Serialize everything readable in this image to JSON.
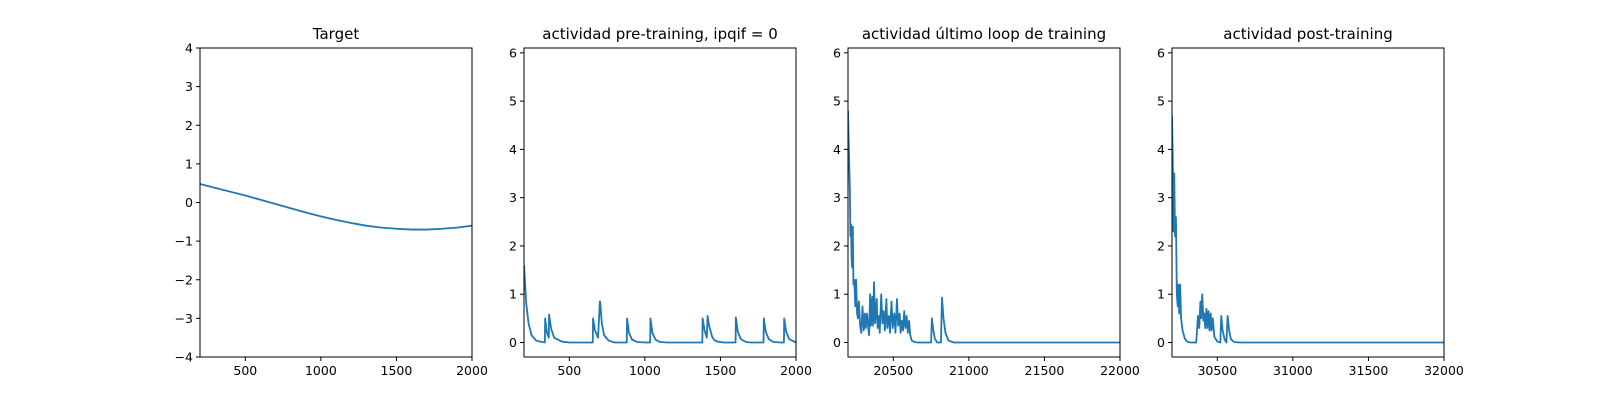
{
  "chart_data": [
    {
      "type": "line",
      "title": "Target",
      "xlabel": "",
      "ylabel": "",
      "xlim": [
        200,
        2000
      ],
      "ylim": [
        -4,
        4
      ],
      "xticks": [
        500,
        1000,
        1500,
        2000
      ],
      "xtick_labels": [
        "500",
        "1000",
        "1500",
        "2000"
      ],
      "yticks": [
        -4,
        -3,
        -2,
        -1,
        0,
        1,
        2,
        3,
        4
      ],
      "ytick_labels": [
        "−4",
        "−3",
        "−2",
        "−1",
        "0",
        "1",
        "2",
        "3",
        "4"
      ],
      "grid": false,
      "color": "#1f77b4",
      "x": [
        200,
        300,
        400,
        500,
        600,
        700,
        800,
        900,
        1000,
        1100,
        1200,
        1300,
        1400,
        1500,
        1600,
        1700,
        1800,
        1900,
        2000
      ],
      "y": [
        0.48,
        0.38,
        0.28,
        0.18,
        0.07,
        -0.04,
        -0.15,
        -0.26,
        -0.36,
        -0.45,
        -0.53,
        -0.6,
        -0.65,
        -0.68,
        -0.7,
        -0.7,
        -0.68,
        -0.65,
        -0.6
      ]
    },
    {
      "type": "line",
      "title": "actividad pre-training, ipqif = 0",
      "xlabel": "",
      "ylabel": "",
      "xlim": [
        200,
        2000
      ],
      "ylim": [
        -0.3,
        6.1
      ],
      "xticks": [
        500,
        1000,
        1500,
        2000
      ],
      "xtick_labels": [
        "500",
        "1000",
        "1500",
        "2000"
      ],
      "yticks": [
        0,
        1,
        2,
        3,
        4,
        5,
        6
      ],
      "ytick_labels": [
        "0",
        "1",
        "2",
        "3",
        "4",
        "5",
        "6"
      ],
      "grid": false,
      "color": "#1f77b4",
      "x": [
        200,
        215,
        230,
        250,
        280,
        320,
        338,
        340,
        352,
        364,
        366,
        380,
        400,
        450,
        500,
        655,
        657,
        670,
        690,
        702,
        704,
        715,
        730,
        760,
        800,
        880,
        882,
        895,
        915,
        950,
        1000,
        1035,
        1037,
        1050,
        1070,
        1100,
        1150,
        1380,
        1382,
        1395,
        1405,
        1410,
        1415,
        1425,
        1445,
        1460,
        1480,
        1520,
        1600,
        1602,
        1615,
        1635,
        1670,
        1700,
        1785,
        1787,
        1800,
        1820,
        1850,
        1900,
        1920,
        1922,
        1935,
        1955,
        2000
      ],
      "y": [
        1.6,
        0.8,
        0.4,
        0.15,
        0.04,
        0.01,
        0.0,
        0.5,
        0.2,
        0.1,
        0.58,
        0.28,
        0.1,
        0.02,
        0.0,
        0.0,
        0.5,
        0.25,
        0.1,
        0.85,
        0.85,
        0.4,
        0.15,
        0.04,
        0.0,
        0.0,
        0.5,
        0.2,
        0.06,
        0.01,
        0.0,
        0.0,
        0.5,
        0.2,
        0.06,
        0.01,
        0.0,
        0.0,
        0.5,
        0.25,
        0.15,
        0.1,
        0.55,
        0.35,
        0.12,
        0.05,
        0.02,
        0.0,
        0.0,
        0.52,
        0.22,
        0.07,
        0.01,
        0.0,
        0.0,
        0.5,
        0.22,
        0.07,
        0.01,
        0.0,
        0.0,
        0.5,
        0.22,
        0.07,
        0.0
      ]
    },
    {
      "type": "line",
      "title": "actividad último loop de training",
      "xlabel": "",
      "ylabel": "",
      "xlim": [
        20200,
        22000
      ],
      "ylim": [
        -0.3,
        6.1
      ],
      "xticks": [
        20500,
        21000,
        21500,
        22000
      ],
      "xtick_labels": [
        "20500",
        "21000",
        "21500",
        "22000"
      ],
      "yticks": [
        0,
        1,
        2,
        3,
        4,
        5,
        6
      ],
      "ytick_labels": [
        "0",
        "1",
        "2",
        "3",
        "4",
        "5",
        "6"
      ],
      "grid": false,
      "color": "#1f77b4",
      "x": [
        20200,
        20206,
        20212,
        20216,
        20220,
        20224,
        20228,
        20232,
        20236,
        20242,
        20248,
        20254,
        20260,
        20266,
        20272,
        20280,
        20288,
        20296,
        20304,
        20312,
        20318,
        20326,
        20334,
        20340,
        20346,
        20352,
        20360,
        20366,
        20372,
        20380,
        20390,
        20396,
        20404,
        20410,
        20420,
        20428,
        20436,
        20444,
        20454,
        20460,
        20470,
        20478,
        20488,
        20496,
        20506,
        20514,
        20524,
        20532,
        20542,
        20548,
        20556,
        20564,
        20572,
        20580,
        20588,
        20596,
        20604,
        20612,
        20622,
        20640,
        20660,
        20700,
        20750,
        20755,
        20765,
        20775,
        20790,
        20815,
        20822,
        20832,
        20845,
        20865,
        20900,
        21000,
        21500,
        22000
      ],
      "y": [
        4.8,
        4.0,
        3.2,
        2.2,
        2.45,
        1.7,
        1.55,
        2.4,
        1.2,
        1.3,
        0.75,
        1.3,
        0.6,
        0.5,
        0.85,
        0.35,
        0.2,
        0.75,
        0.25,
        0.6,
        0.3,
        0.6,
        0.3,
        0.15,
        1.0,
        0.35,
        0.95,
        0.35,
        1.25,
        0.4,
        0.9,
        0.3,
        0.55,
        0.2,
        1.0,
        0.4,
        0.65,
        0.25,
        0.9,
        0.3,
        0.55,
        0.2,
        0.85,
        0.3,
        0.6,
        0.2,
        0.9,
        0.35,
        0.6,
        0.2,
        0.45,
        0.25,
        0.65,
        0.3,
        0.55,
        0.2,
        0.45,
        0.15,
        0.04,
        0.01,
        0.0,
        0.0,
        0.0,
        0.5,
        0.25,
        0.08,
        0.0,
        0.0,
        0.93,
        0.5,
        0.2,
        0.04,
        0.0,
        0.0,
        0.0,
        0.0
      ]
    },
    {
      "type": "line",
      "title": "actividad post-training",
      "xlabel": "",
      "ylabel": "",
      "xlim": [
        30200,
        32000
      ],
      "ylim": [
        -0.3,
        6.1
      ],
      "xticks": [
        30500,
        31000,
        31500,
        32000
      ],
      "xtick_labels": [
        "30500",
        "31000",
        "31500",
        "32000"
      ],
      "yticks": [
        0,
        1,
        2,
        3,
        4,
        5,
        6
      ],
      "ytick_labels": [
        "0",
        "1",
        "2",
        "3",
        "4",
        "5",
        "6"
      ],
      "grid": false,
      "color": "#1f77b4",
      "x": [
        30200,
        30205,
        30210,
        30215,
        30220,
        30226,
        30232,
        30238,
        30242,
        30248,
        30254,
        30260,
        30270,
        30285,
        30300,
        30320,
        30340,
        30360,
        30372,
        30380,
        30388,
        30394,
        30400,
        30408,
        30414,
        30420,
        30428,
        30434,
        30442,
        30448,
        30456,
        30462,
        30470,
        30480,
        30500,
        30520,
        30526,
        30535,
        30548,
        30560,
        30568,
        30578,
        30590,
        30610,
        30650,
        30700,
        31000,
        31500,
        32000
      ],
      "y": [
        4.7,
        3.8,
        2.3,
        3.5,
        2.2,
        2.6,
        1.0,
        0.75,
        1.2,
        0.6,
        1.2,
        0.5,
        0.25,
        0.08,
        0.02,
        0.0,
        0.0,
        0.0,
        0.55,
        0.3,
        0.85,
        0.5,
        1.0,
        0.45,
        0.6,
        0.3,
        0.7,
        0.3,
        0.65,
        0.25,
        0.6,
        0.25,
        0.5,
        0.12,
        0.02,
        0.0,
        0.55,
        0.25,
        0.07,
        0.0,
        0.55,
        0.25,
        0.07,
        0.01,
        0.0,
        0.0,
        0.0,
        0.0,
        0.0
      ]
    }
  ]
}
